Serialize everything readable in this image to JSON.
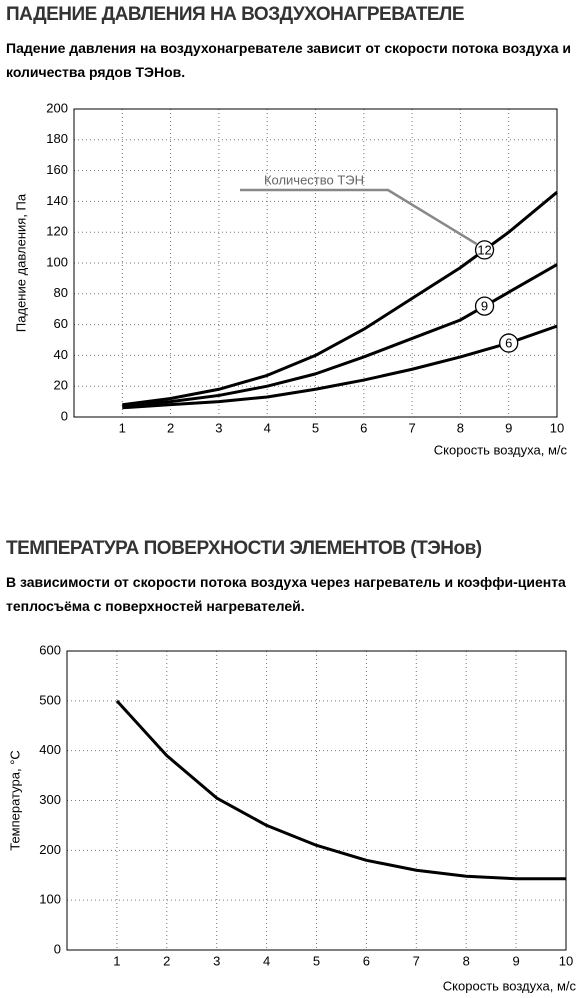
{
  "chart_data": [
    {
      "type": "line",
      "title": "ПАДЕНИЕ ДАВЛЕНИЯ НА ВОЗДУХОНАГРЕВАТЕЛЕ",
      "subtitle": "Падение давления на воздухонагревателе зависит от  скорости  потока воздуха и количества рядов ТЭНов.",
      "y_label": "Падение давления, Па",
      "x_label": "Скорость воздуха, м/с",
      "annotation": "Количество ТЭН",
      "x": [
        1,
        2,
        3,
        4,
        5,
        6,
        7,
        8,
        9,
        10
      ],
      "series": [
        {
          "name": "12",
          "color": "#000000",
          "values": [
            8,
            12,
            18,
            27,
            40,
            57,
            77,
            97,
            120,
            146
          ]
        },
        {
          "name": "9",
          "color": "#000000",
          "values": [
            7,
            10,
            14,
            20,
            28,
            39,
            51,
            63,
            81,
            99
          ]
        },
        {
          "name": "6",
          "color": "#000000",
          "values": [
            6,
            8,
            10,
            13,
            18,
            24,
            31,
            39,
            48,
            59
          ]
        }
      ],
      "xlim": [
        0,
        10
      ],
      "xticks": [
        1,
        2,
        3,
        4,
        5,
        6,
        7,
        8,
        9,
        10
      ],
      "ylim": [
        0,
        200
      ],
      "yticks": [
        0,
        20,
        40,
        60,
        80,
        100,
        120,
        140,
        160,
        180,
        200
      ],
      "grid": true
    },
    {
      "type": "line",
      "title": "ТЕМПЕРАТУРА ПОВЕРХНОСТИ ЭЛЕМЕНТОВ (ТЭНов)",
      "subtitle": "В зависимости от скорости потока воздуха через нагреватель  и  коэффи-циента  теплосъёма с поверхностей нагревателей.",
      "y_label": "Температура, °С",
      "x_label": "Скорость воздуха, м/с",
      "x": [
        1,
        2,
        3,
        4,
        5,
        6,
        7,
        8,
        9,
        10
      ],
      "series": [
        {
          "color": "#000000",
          "values": [
            500,
            390,
            305,
            250,
            210,
            180,
            160,
            148,
            143,
            143
          ]
        }
      ],
      "xlim": [
        0,
        10
      ],
      "xticks": [
        1,
        2,
        3,
        4,
        5,
        6,
        7,
        8,
        9,
        10
      ],
      "ylim": [
        0,
        600
      ],
      "yticks": [
        0,
        100,
        200,
        300,
        400,
        500,
        600
      ],
      "grid": true
    }
  ]
}
